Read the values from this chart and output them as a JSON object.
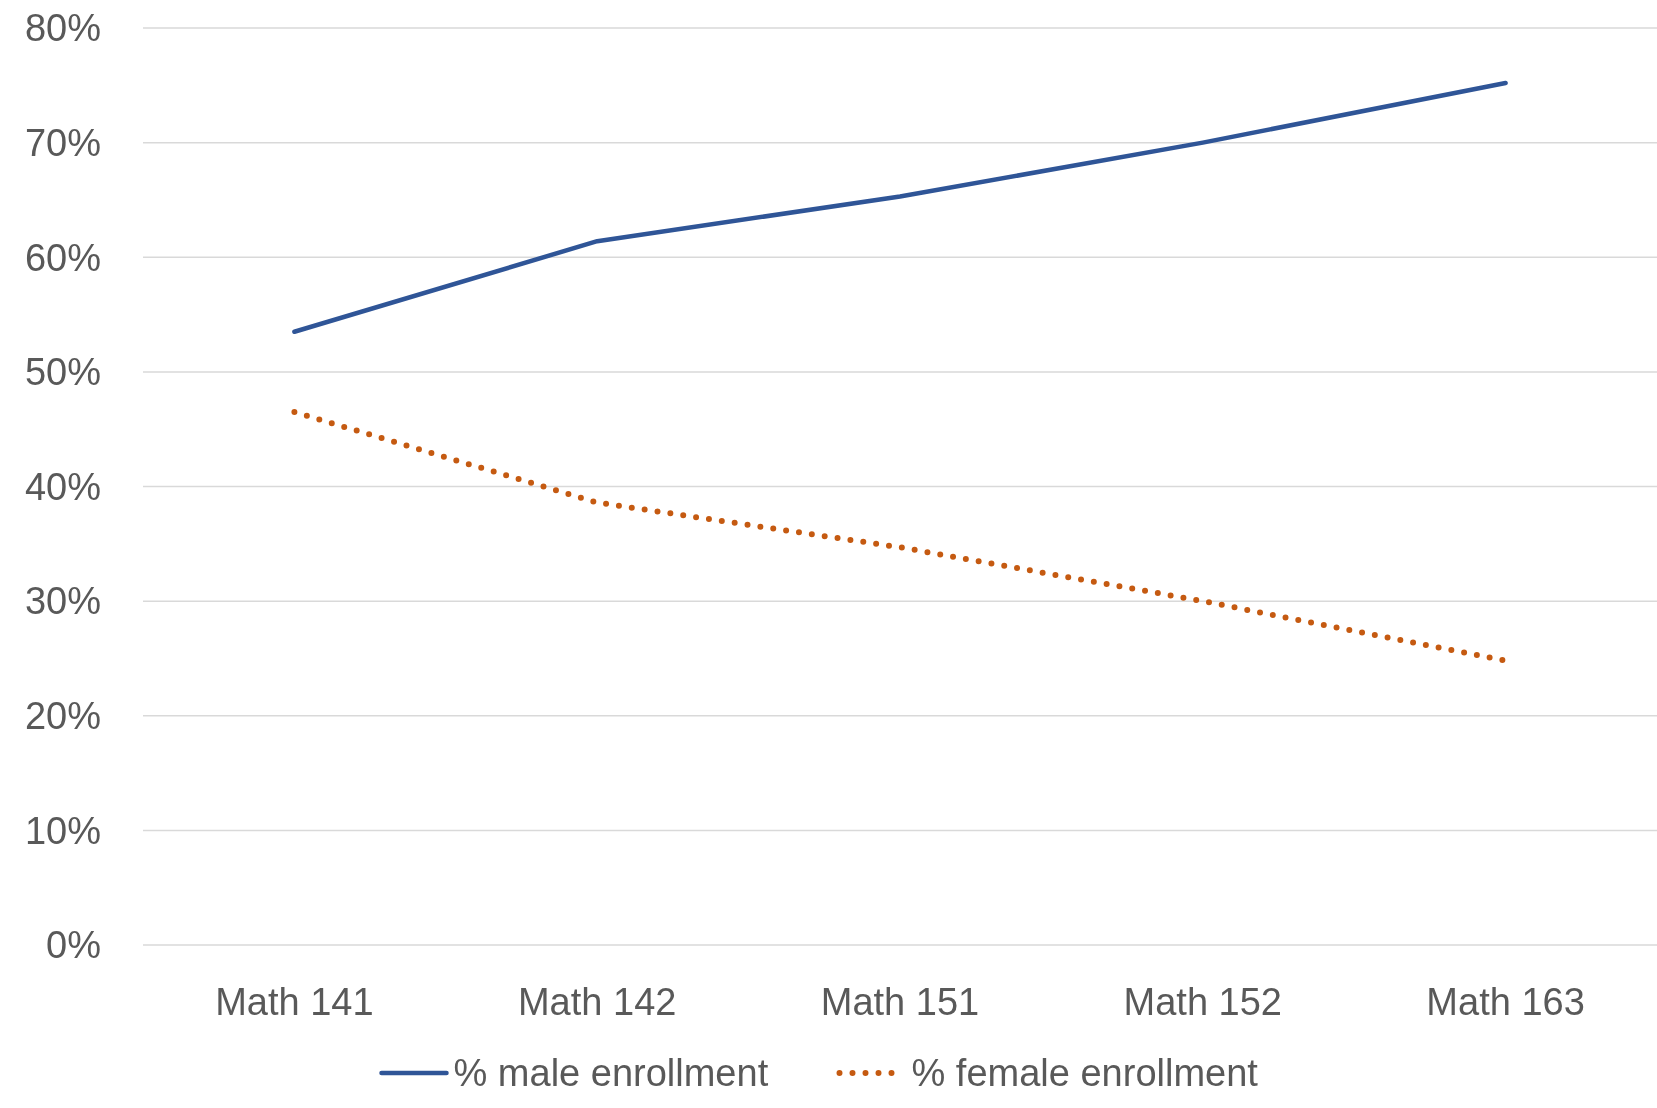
{
  "chart_data": {
    "type": "line",
    "categories": [
      "Math 141",
      "Math 142",
      "Math 151",
      "Math 152",
      "Math 163"
    ],
    "series": [
      {
        "name": "% male enrollment",
        "color": "#2f5597",
        "line_style": "solid",
        "values": [
          53.5,
          61.4,
          65.3,
          70.0,
          75.2
        ]
      },
      {
        "name": "% female enrollment",
        "color": "#c55a11",
        "line_style": "dotted",
        "values": [
          46.5,
          38.6,
          34.7,
          30.0,
          24.8
        ]
      }
    ],
    "ylim": [
      0,
      80
    ],
    "yticks": [
      {
        "value": 0,
        "label": "0%"
      },
      {
        "value": 10,
        "label": "10%"
      },
      {
        "value": 20,
        "label": "20%"
      },
      {
        "value": 30,
        "label": "30%"
      },
      {
        "value": 40,
        "label": "40%"
      },
      {
        "value": 50,
        "label": "50%"
      },
      {
        "value": 60,
        "label": "60%"
      },
      {
        "value": 70,
        "label": "70%"
      },
      {
        "value": 80,
        "label": "80%"
      }
    ],
    "grid": "y",
    "legend": "bottom"
  }
}
